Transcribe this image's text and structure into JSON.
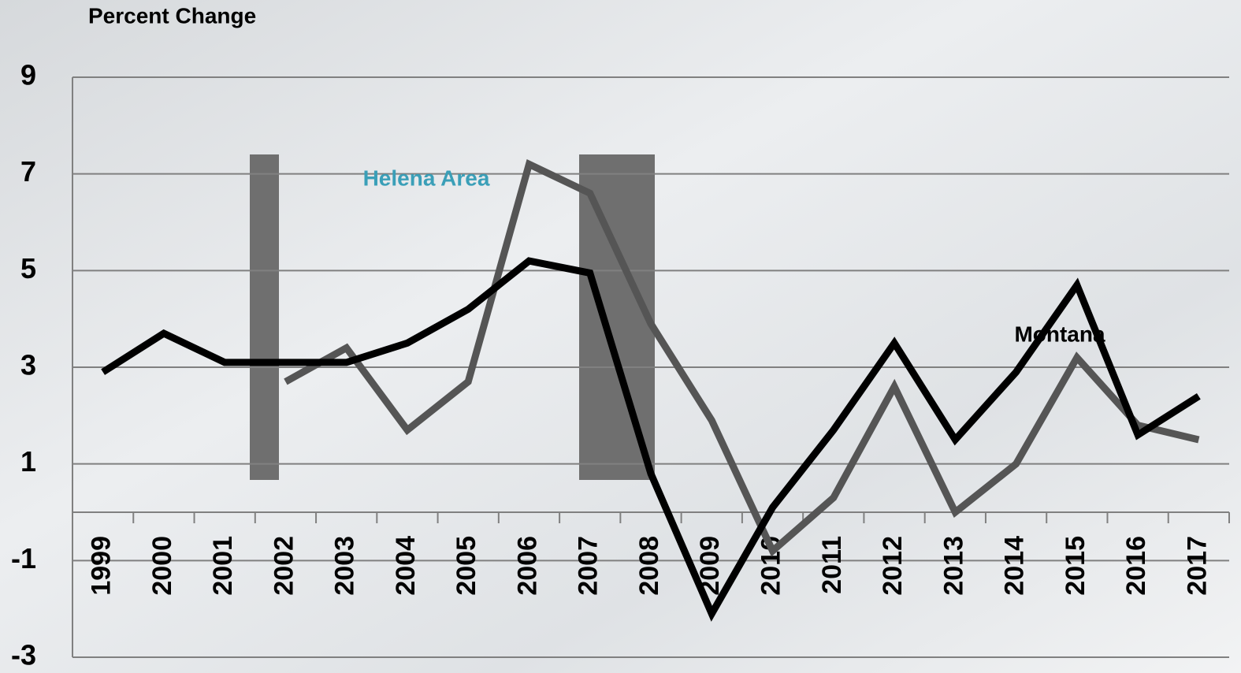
{
  "chart_data": {
    "type": "line",
    "y_axis_label": "Percent Change",
    "categories": [
      "1999",
      "2000",
      "2001",
      "2002",
      "2003",
      "2004",
      "2005",
      "2006",
      "2007",
      "2008",
      "2009",
      "2010",
      "2011",
      "2012",
      "2013",
      "2014",
      "2015",
      "2016",
      "2017"
    ],
    "series": [
      {
        "name": "Montana",
        "color": "#000000",
        "values": [
          2.9,
          3.7,
          3.1,
          3.1,
          3.1,
          3.5,
          4.2,
          5.2,
          4.95,
          0.8,
          -2.1,
          0.1,
          1.7,
          3.5,
          1.5,
          2.9,
          4.7,
          1.6,
          2.4
        ]
      },
      {
        "name": "Helena Area",
        "color": "#555555",
        "label_color": "#3a9fb8",
        "values": [
          null,
          null,
          null,
          2.7,
          3.4,
          1.7,
          2.7,
          7.2,
          6.6,
          3.9,
          1.9,
          -0.8,
          0.3,
          2.6,
          0.0,
          1.0,
          3.2,
          1.8,
          1.5
        ]
      }
    ],
    "ylim": [
      -3,
      9
    ],
    "yticks": [
      -3,
      -1,
      1,
      3,
      5,
      7,
      9
    ],
    "grid": true
  }
}
